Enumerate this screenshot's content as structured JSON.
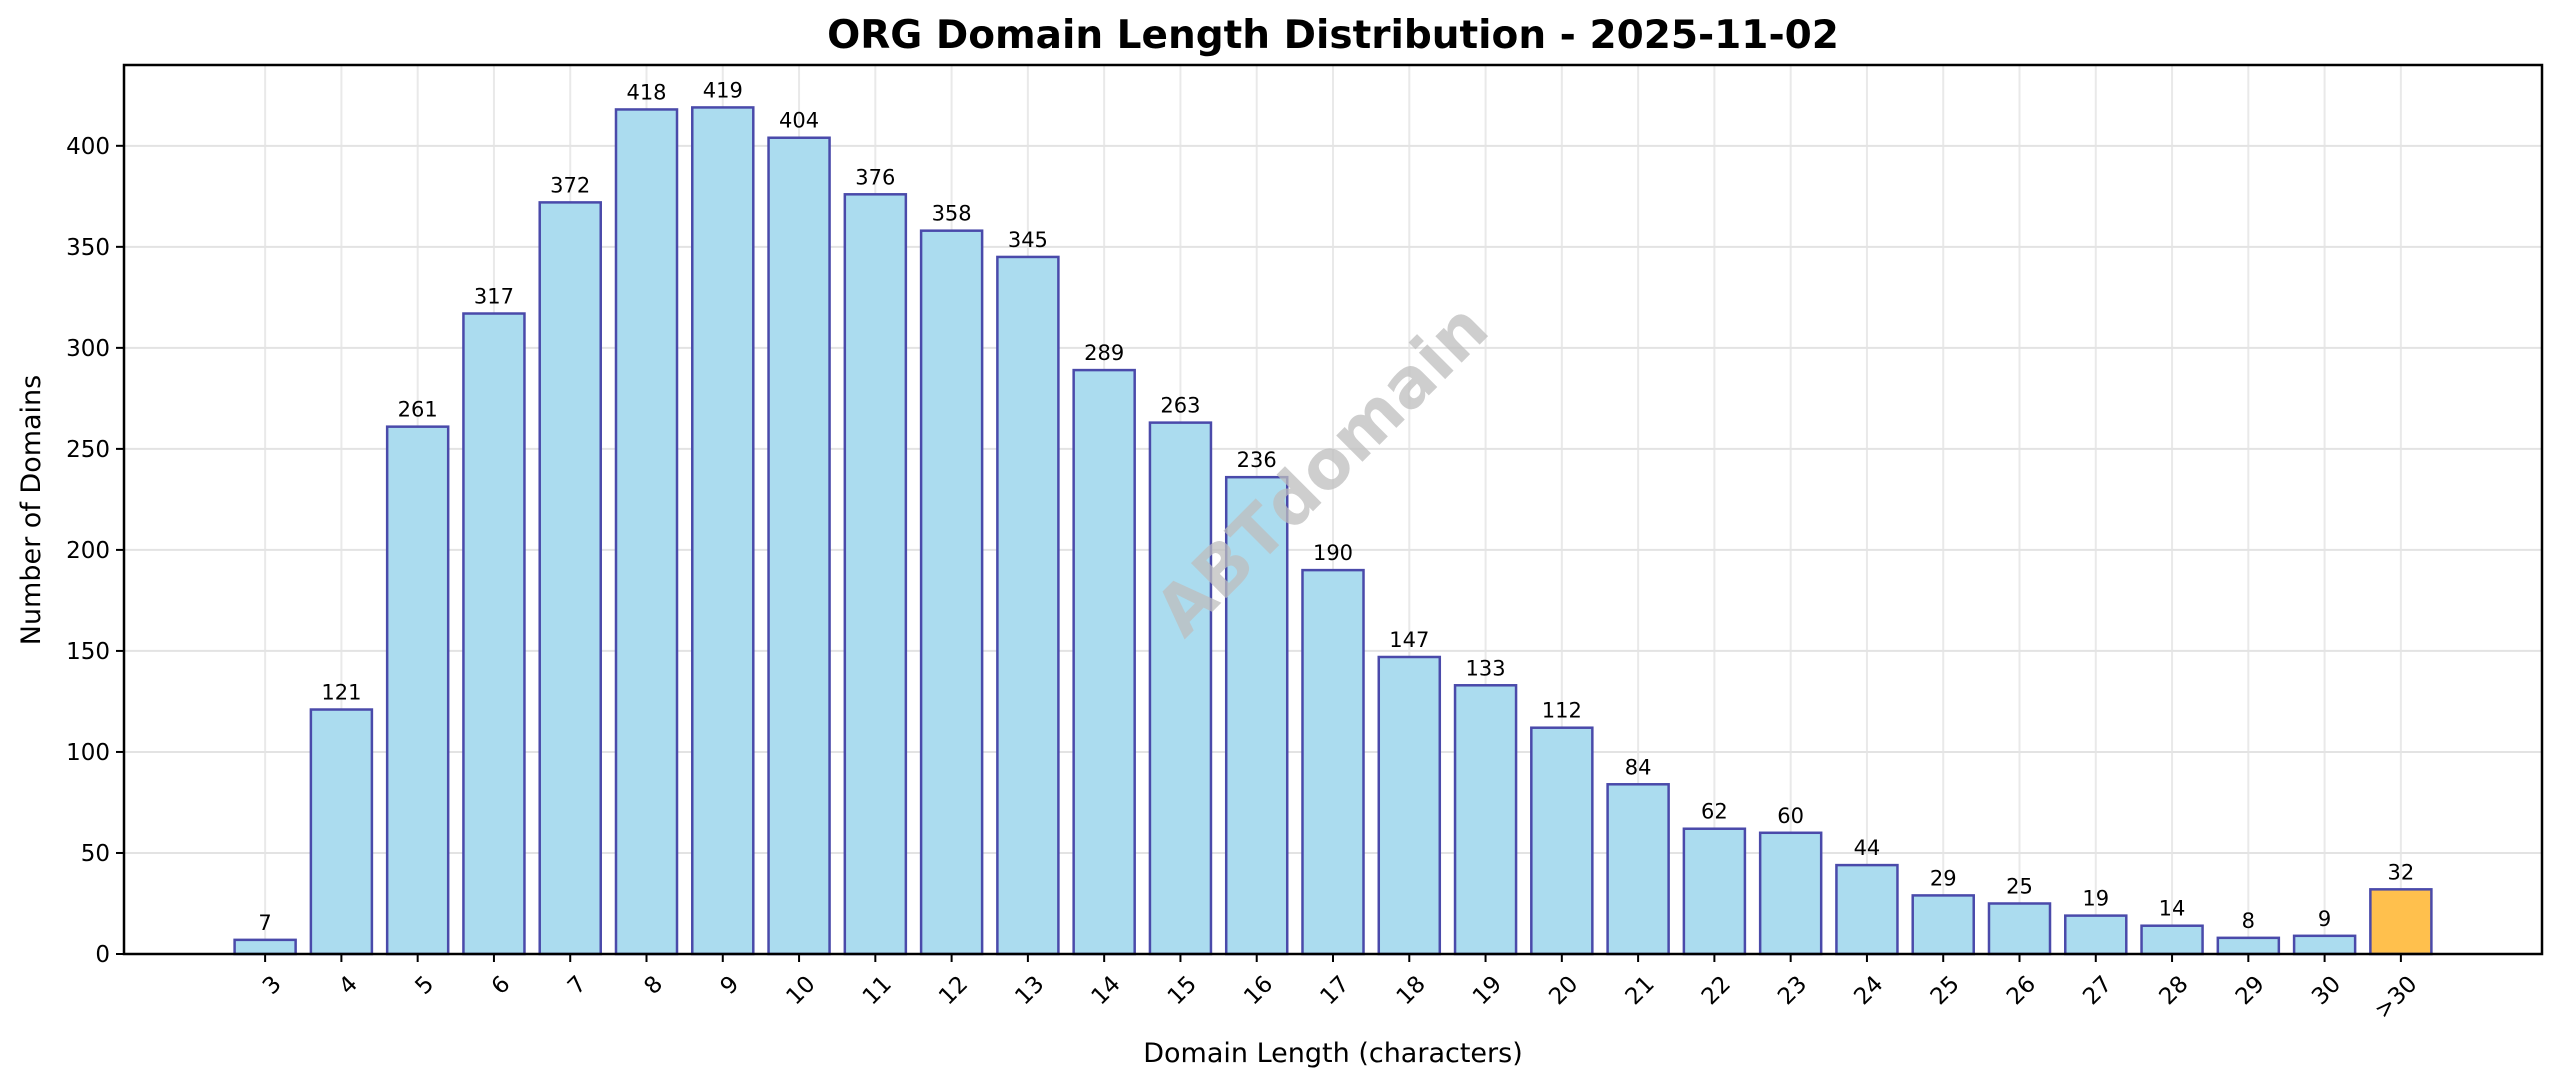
{
  "chart_data": {
    "type": "bar",
    "title": "ORG Domain Length Distribution - 2025-11-02",
    "xlabel": "Domain Length (characters)",
    "ylabel": "Number of Domains",
    "categories": [
      "3",
      "4",
      "5",
      "6",
      "7",
      "8",
      "9",
      "10",
      "11",
      "12",
      "13",
      "14",
      "15",
      "16",
      "17",
      "18",
      "19",
      "20",
      "21",
      "22",
      "23",
      "24",
      "25",
      "26",
      "27",
      "28",
      "29",
      "30",
      ">30"
    ],
    "values": [
      7,
      121,
      261,
      317,
      372,
      418,
      419,
      404,
      376,
      358,
      345,
      289,
      263,
      236,
      190,
      147,
      133,
      112,
      84,
      62,
      60,
      44,
      29,
      25,
      19,
      14,
      8,
      9,
      32
    ],
    "ylim": [
      0,
      440
    ],
    "yticks": [
      0,
      50,
      100,
      150,
      200,
      250,
      300,
      350,
      400
    ],
    "grid": true,
    "data_labels": true,
    "watermark": "ABTdomain",
    "colors": {
      "bar_fill": "#abdcef",
      "bar_highlight_fill": "#ffc04d",
      "bar_edge": "#4a4aaa",
      "grid": "#e3e3e3",
      "watermark": "#bdbdbd"
    }
  }
}
